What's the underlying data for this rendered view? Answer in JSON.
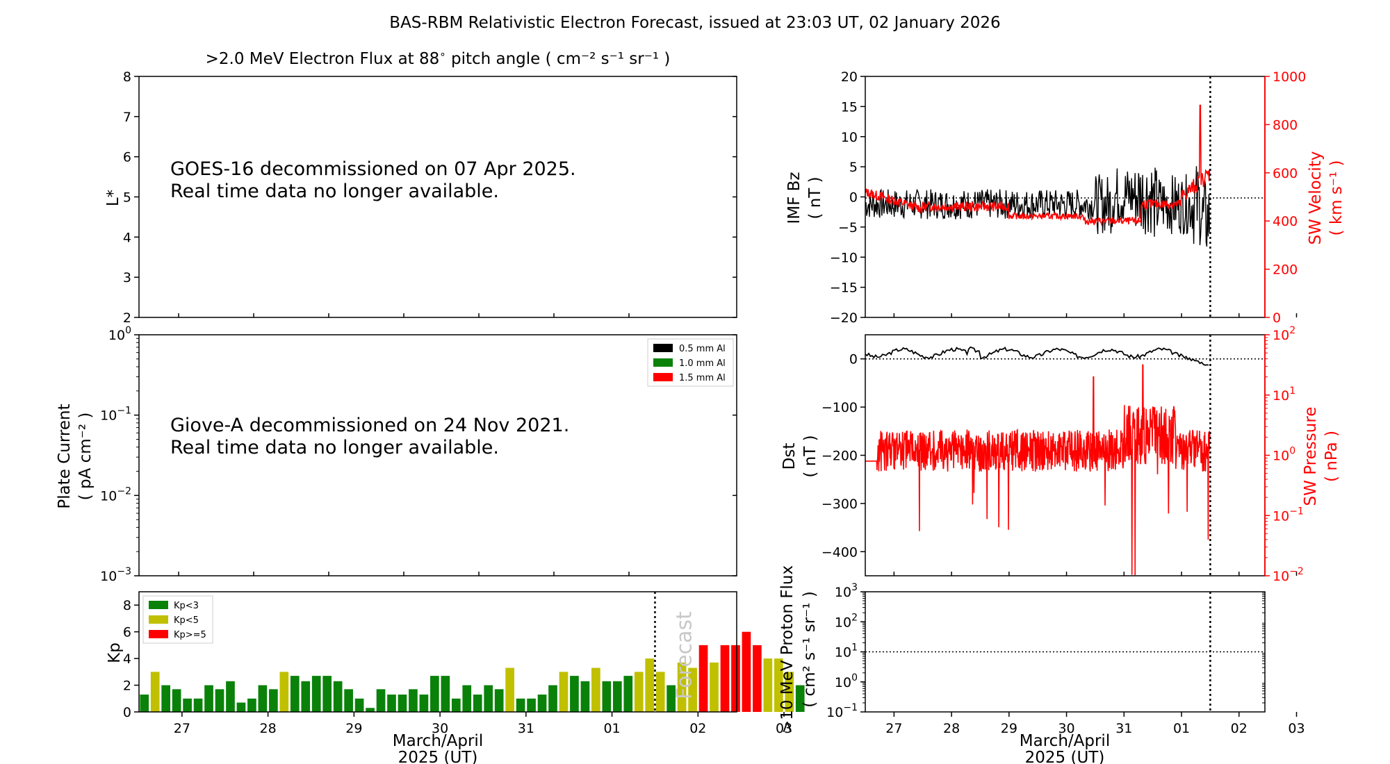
{
  "page": {
    "title": "BAS-RBM Relativistic Electron Forecast, issued at 23:03 UT, 02 January 2026"
  },
  "colors": {
    "kp_green": "#0a820a",
    "kp_yellow": "#c0c000",
    "kp_red": "#ff0000",
    "sw": "#ff0000",
    "axis": "#000000"
  },
  "chart_data": [
    {
      "id": "electron-flux",
      "type": "heatmap",
      "title": ">2.0 MeV Electron Flux at 88",
      "title_unit": "pitch angle ( cm⁻² s⁻¹ sr⁻¹ )",
      "ylabel": "L*",
      "ylim": [
        2,
        8
      ],
      "yticks": [
        "2",
        "3",
        "4",
        "5",
        "6",
        "7",
        "8"
      ],
      "annotation_lines": [
        "GOES-16 decommissioned on 07 Apr 2025.",
        "Real time data no longer available."
      ]
    },
    {
      "id": "plate-current",
      "type": "line",
      "ylabel": "Plate Current",
      "yunit": "( pA cm⁻² )",
      "yscale": "log",
      "ylim": [
        0.001,
        1
      ],
      "yticks": [
        {
          "base": "10",
          "exp": "0",
          "value": 1
        },
        {
          "base": "10",
          "exp": "−1",
          "value": 0.1
        },
        {
          "base": "10",
          "exp": "−2",
          "value": 0.01
        },
        {
          "base": "10",
          "exp": "−3",
          "value": 0.001
        }
      ],
      "legend": [
        {
          "label": "0.5 mm Al",
          "color": "#000000"
        },
        {
          "label": "1.0 mm Al",
          "color": "#0a820a"
        },
        {
          "label": "1.5 mm Al",
          "color": "#ff0000"
        }
      ],
      "legend_position": "top-right",
      "annotation_lines": [
        "Giove-A decommissioned on 24 Nov 2021.",
        "Real time data no longer available."
      ]
    },
    {
      "id": "kp",
      "type": "bar",
      "ylabel": "Kp",
      "ylim": [
        0,
        9
      ],
      "yticks": [
        "0",
        "2",
        "4",
        "6",
        "8"
      ],
      "xlim_days": [
        26.5,
        33.45
      ],
      "xticks": [
        "27",
        "28",
        "29",
        "30",
        "31",
        "01",
        "02",
        "03"
      ],
      "xlabel": [
        "March/April",
        "2025 (UT)"
      ],
      "forecast_label": "Forecast",
      "issue_marker_day": 32.5,
      "legend": [
        {
          "label": "Kp<3",
          "color": "#0a820a"
        },
        {
          "label": "Kp<5",
          "color": "#c0c000"
        },
        {
          "label": "Kp>=5",
          "color": "#ff0000"
        }
      ],
      "legend_position": "top-left",
      "values": [
        1.3,
        3.0,
        2.0,
        1.7,
        1.0,
        1.0,
        2.0,
        1.7,
        2.3,
        0.7,
        1.0,
        2.0,
        1.7,
        3.0,
        2.7,
        2.3,
        2.7,
        2.7,
        2.3,
        1.7,
        1.0,
        0.3,
        1.7,
        1.3,
        1.3,
        1.7,
        1.3,
        2.7,
        2.7,
        1.0,
        2.0,
        1.3,
        2.0,
        1.7,
        3.3,
        1.0,
        1.0,
        1.3,
        2.0,
        3.0,
        2.7,
        2.3,
        3.3,
        2.3,
        2.3,
        2.7,
        3.0,
        4.0,
        3.0,
        2.0,
        3.7,
        3.3,
        5.0,
        3.7,
        5.0,
        5.0,
        6.0,
        5.0,
        4.0,
        4.0,
        3.0,
        2.0
      ]
    },
    {
      "id": "imf-sw",
      "type": "line",
      "ylabel": "IMF Bz",
      "yunit": "( nT )",
      "ylim": [
        -20,
        20
      ],
      "yticks": [
        "20",
        "15",
        "10",
        "5",
        "0",
        "−5",
        "−10",
        "−15",
        "−20"
      ],
      "y2label": "SW Velocity",
      "y2unit": "( km s⁻¹ )",
      "y2lim": [
        0,
        1000
      ],
      "y2ticks": [
        "1000",
        "800",
        "600",
        "400",
        "200",
        "0"
      ],
      "xlim_days": [
        26.5,
        33.45
      ],
      "issue_marker_day": 32.5,
      "series": [
        {
          "name": "IMF Bz",
          "color": "#000000",
          "range_hint": [
            -8,
            11
          ]
        },
        {
          "name": "SW Velocity",
          "color": "#ff0000",
          "range_hint": [
            320,
            880
          ]
        }
      ]
    },
    {
      "id": "dst-swp",
      "type": "line",
      "ylabel": "Dst",
      "yunit": "( nT )",
      "ylim": [
        -450,
        50
      ],
      "yticks": [
        "0",
        "−100",
        "−200",
        "−300",
        "−400"
      ],
      "y2label": "SW Pressure",
      "y2unit": "( nPa )",
      "y2scale": "log",
      "y2lim": [
        0.01,
        100
      ],
      "y2ticks": [
        {
          "base": "10",
          "exp": "2"
        },
        {
          "base": "10",
          "exp": "1"
        },
        {
          "base": "10",
          "exp": "0"
        },
        {
          "base": "10",
          "exp": "−1"
        },
        {
          "base": "10",
          "exp": "−2"
        }
      ],
      "xlim_days": [
        26.5,
        33.45
      ],
      "issue_marker_day": 32.5,
      "series": [
        {
          "name": "Dst",
          "color": "#000000",
          "range_hint": [
            -25,
            30
          ]
        },
        {
          "name": "SW Pressure",
          "color": "#ff0000",
          "range_hint": [
            0.01,
            20
          ]
        }
      ]
    },
    {
      "id": "proton-flux",
      "type": "line",
      "ylabel": ">10 MeV Proton Flux",
      "yunit": "( cm² s⁻¹ sr⁻¹ )",
      "yscale": "log",
      "ylim": [
        0.1,
        1000
      ],
      "yticks": [
        {
          "base": "10",
          "exp": "3"
        },
        {
          "base": "10",
          "exp": "2"
        },
        {
          "base": "10",
          "exp": "1"
        },
        {
          "base": "10",
          "exp": "0"
        },
        {
          "base": "10",
          "exp": "−1"
        }
      ],
      "threshold": 10,
      "xlim_days": [
        26.5,
        33.45
      ],
      "xticks": [
        "27",
        "28",
        "29",
        "30",
        "31",
        "01",
        "02",
        "03"
      ],
      "xlabel": [
        "March/April",
        "2025 (UT)"
      ],
      "issue_marker_day": 32.5
    }
  ]
}
